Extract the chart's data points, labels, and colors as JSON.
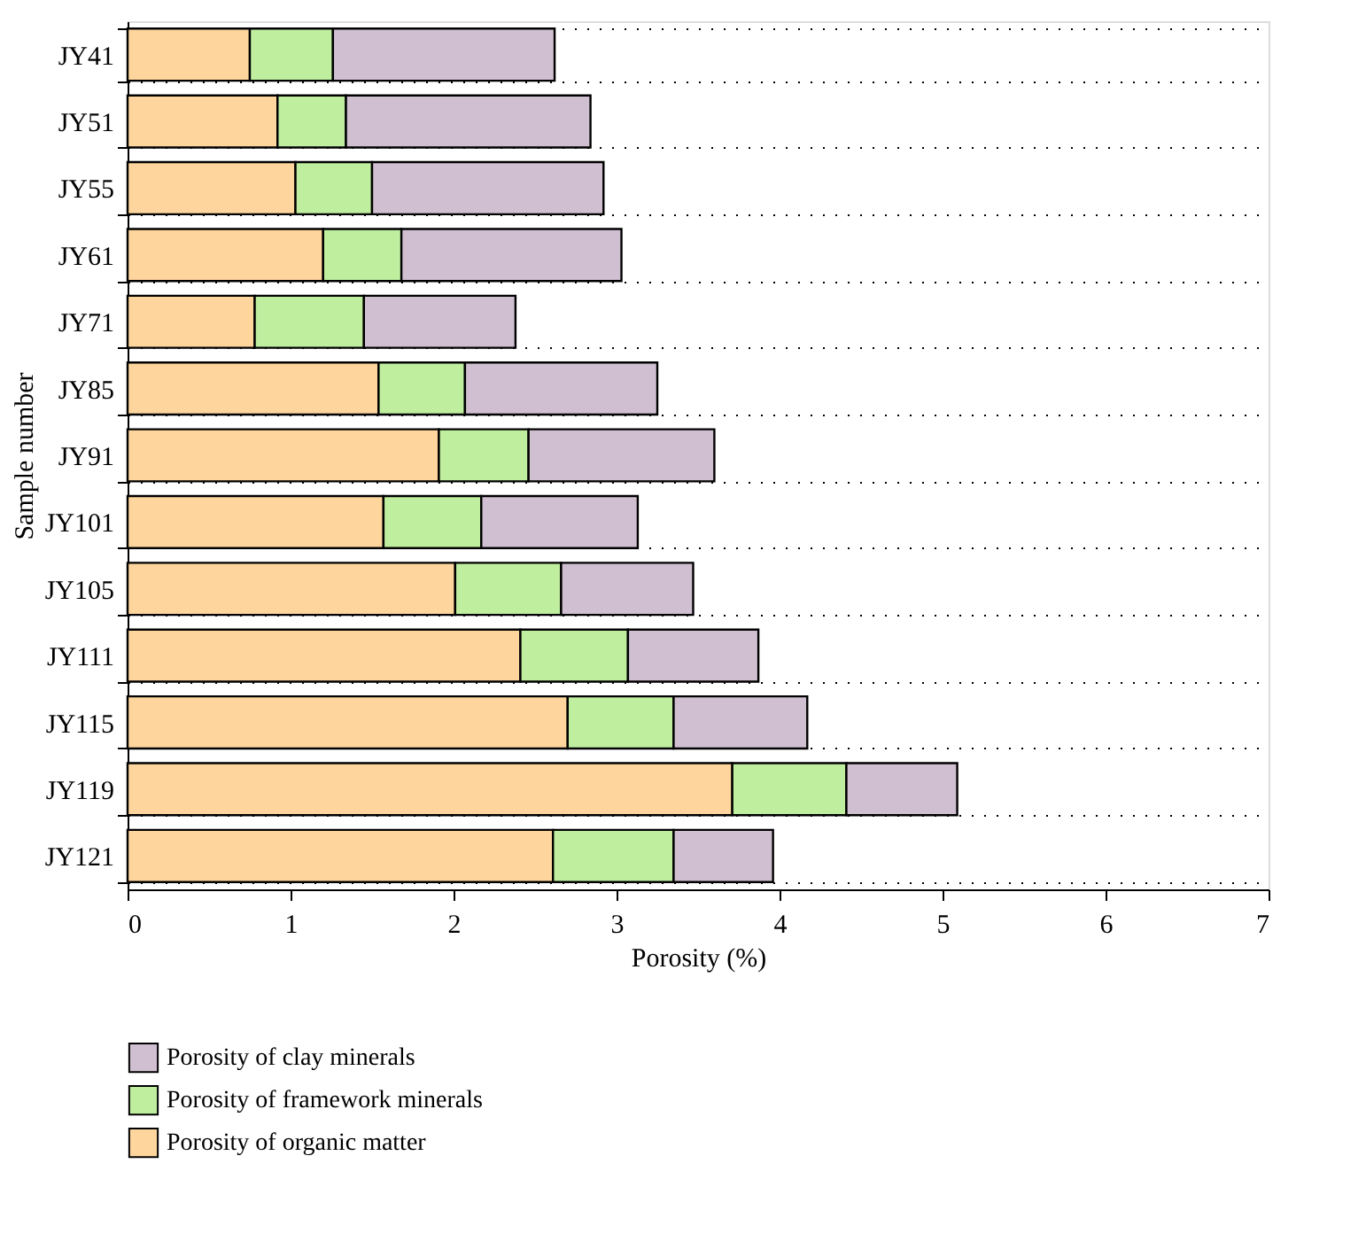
{
  "chart_data": {
    "type": "bar",
    "orientation": "horizontal",
    "stacked": true,
    "xlabel": "Porosity (%)",
    "ylabel": "Sample number",
    "categories": [
      "JY41",
      "JY51",
      "JY55",
      "JY61",
      "JY71",
      "JY85",
      "JY91",
      "JY101",
      "JY105",
      "JY111",
      "JY115",
      "JY119",
      "JY121"
    ],
    "series": [
      {
        "name": "Porosity of organic matter",
        "color": "#fed59c",
        "values": [
          0.75,
          0.92,
          1.03,
          1.2,
          0.78,
          1.54,
          1.91,
          1.57,
          2.01,
          2.41,
          2.7,
          3.71,
          2.61
        ]
      },
      {
        "name": "Porosity of framework minerals",
        "color": "#bfee9f",
        "values": [
          0.51,
          0.42,
          0.47,
          0.48,
          0.67,
          0.53,
          0.55,
          0.6,
          0.65,
          0.66,
          0.65,
          0.7,
          0.74
        ]
      },
      {
        "name": "Porosity of clay minerals",
        "color": "#d0bfd0",
        "values": [
          1.36,
          1.5,
          1.42,
          1.35,
          0.93,
          1.18,
          1.14,
          0.96,
          0.81,
          0.8,
          0.82,
          0.68,
          0.61
        ]
      }
    ],
    "xlim": [
      0,
      7
    ],
    "xticks": [
      0,
      1,
      2,
      3,
      4,
      5,
      6,
      7
    ],
    "grid": "y",
    "legend": "bottom left"
  }
}
